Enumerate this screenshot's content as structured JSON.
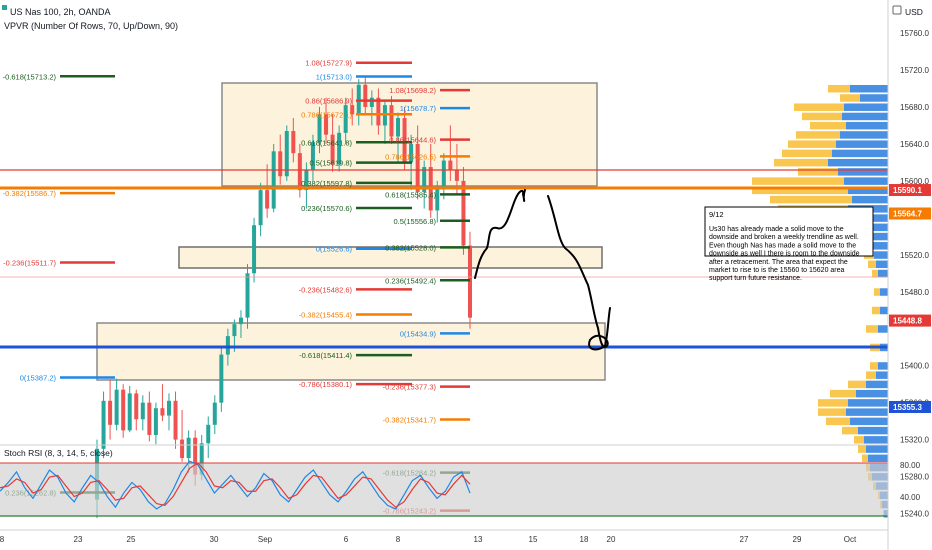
{
  "header": {
    "symbol_line": "US Nas 100, 2h, OANDA",
    "indicator_line": "VPVR (Number Of Rows, 70, Up/Down, 90)"
  },
  "price_axis": {
    "currency": "USD",
    "ticks": [
      "15760.0",
      "15720.0",
      "15680.0",
      "15640.0",
      "15600.0",
      "15520.0",
      "15480.0",
      "15400.0",
      "15360.0",
      "15320.0",
      "15280.0",
      "15240.0"
    ]
  },
  "time_axis": {
    "ticks": [
      "8",
      "23",
      "25",
      "30",
      "Sep",
      "6",
      "8",
      "13",
      "15",
      "18",
      "20",
      "27",
      "29",
      "Oct"
    ]
  },
  "price_tags": [
    {
      "label": "15590.1",
      "price": 15590.1,
      "color": "#e53935"
    },
    {
      "label": "15564.7",
      "price": 15564.7,
      "color": "#f57c00"
    },
    {
      "label": "15448.8",
      "price": 15448.8,
      "color": "#e53935"
    },
    {
      "label": "15355.3",
      "price": 15355.3,
      "color": "#1e53d6"
    }
  ],
  "fib_left": [
    {
      "label": "-0.618(15713.2)",
      "price": 15713.2,
      "color": "#1b5e20"
    },
    {
      "label": "-0.382(15586.7)",
      "price": 15586.7,
      "color": "#f57c00"
    },
    {
      "label": "-0.236(15511.7)",
      "price": 15511.7,
      "color": "#e53935"
    },
    {
      "label": "0(15387.2)",
      "price": 15387.2,
      "color": "#1e88e5"
    },
    {
      "label": "0.236(15262.8)",
      "price": 15262.8,
      "color": "#1b5e20"
    }
  ],
  "fib_mid": [
    {
      "label": "1.08(15727.9)",
      "price": 15727.9,
      "color": "#e53935"
    },
    {
      "label": "1(15713.0)",
      "price": 15713.0,
      "color": "#1e88e5"
    },
    {
      "label": "0.86(15686.9)",
      "price": 15686.9,
      "color": "#e53935"
    },
    {
      "label": "0.786(15672.1)",
      "price": 15672.1,
      "color": "#f57c00"
    },
    {
      "label": "0.618(15641.8)",
      "price": 15641.8,
      "color": "#1b5e20"
    },
    {
      "label": "0.5(15619.8)",
      "price": 15619.8,
      "color": "#1b5e20"
    },
    {
      "label": "0.382(15597.8)",
      "price": 15597.8,
      "color": "#1b5e20"
    },
    {
      "label": "0.236(15570.6)",
      "price": 15570.6,
      "color": "#1b5e20"
    },
    {
      "label": "0(15526.6)",
      "price": 15526.6,
      "color": "#1e88e5"
    },
    {
      "label": "-0.236(15482.6)",
      "price": 15482.6,
      "color": "#e53935"
    },
    {
      "label": "-0.382(15455.4)",
      "price": 15455.4,
      "color": "#f57c00"
    },
    {
      "label": "-0.618(15411.4)",
      "price": 15411.4,
      "color": "#1b5e20"
    },
    {
      "label": "-0.786(15380.1)",
      "price": 15380.1,
      "color": "#e53935"
    }
  ],
  "fib_right": [
    {
      "label": "1.08(15698.2)",
      "price": 15698.2,
      "color": "#e53935"
    },
    {
      "label": "1(15678.7)",
      "price": 15678.7,
      "color": "#1e88e5"
    },
    {
      "label": "0.86(15644.6)",
      "price": 15644.6,
      "color": "#e53935"
    },
    {
      "label": "0.786(15626.5)",
      "price": 15626.5,
      "color": "#f57c00"
    },
    {
      "label": "0.618(15585.4)",
      "price": 15585.4,
      "color": "#1b5e20"
    },
    {
      "label": "0.5(15556.8)",
      "price": 15556.8,
      "color": "#1b5e20"
    },
    {
      "label": "0.382(15528.0)",
      "price": 15528.0,
      "color": "#1b5e20"
    },
    {
      "label": "0.236(15492.4)",
      "price": 15492.4,
      "color": "#1b5e20"
    },
    {
      "label": "0(15434.9)",
      "price": 15434.9,
      "color": "#1e88e5"
    },
    {
      "label": "-0.236(15377.3)",
      "price": 15377.3,
      "color": "#e53935"
    },
    {
      "label": "-0.382(15341.7)",
      "price": 15341.7,
      "color": "#f57c00"
    },
    {
      "label": "-0.618(15284.2)",
      "price": 15284.2,
      "color": "#1b5e20"
    },
    {
      "label": "-0.786(15243.2)",
      "price": 15243.2,
      "color": "#e53935"
    }
  ],
  "note": {
    "date": "9/12",
    "text": "Us30 has already made a solid move to the downside and broken a weekly trendline as well. Even though Nas has made a solid move to the downside as well I there is room to the downside after a retracement. The area that expect the market to rise to is the 15560 to 15620 area support turn future resistance."
  },
  "stoch": {
    "title": "Stoch RSI (8, 3, 14, 5, close)",
    "levels": [
      "80.00",
      "40.00"
    ],
    "colors": {
      "k": "#1e88e5",
      "d": "#e53935",
      "band": "#cfcfcf"
    }
  },
  "colors": {
    "up": "#26a69a",
    "down": "#ef5350",
    "vol_up": "#4a90e2",
    "vol_down": "#f9c74f",
    "trend": "#1e53d6"
  },
  "chart_data": {
    "type": "candlestick",
    "price_range": [
      15225,
      15800
    ],
    "candles": [
      [
        15255,
        15320,
        15235,
        15310
      ],
      [
        15310,
        15372,
        15300,
        15362
      ],
      [
        15362,
        15385,
        15320,
        15336
      ],
      [
        15336,
        15386,
        15330,
        15374
      ],
      [
        15374,
        15380,
        15322,
        15330
      ],
      [
        15330,
        15378,
        15328,
        15370
      ],
      [
        15370,
        15374,
        15330,
        15342
      ],
      [
        15342,
        15368,
        15330,
        15360
      ],
      [
        15360,
        15372,
        15318,
        15325
      ],
      [
        15325,
        15360,
        15315,
        15354
      ],
      [
        15354,
        15380,
        15340,
        15346
      ],
      [
        15346,
        15370,
        15330,
        15362
      ],
      [
        15362,
        15372,
        15310,
        15320
      ],
      [
        15320,
        15352,
        15296,
        15300
      ],
      [
        15300,
        15330,
        15284,
        15322
      ],
      [
        15322,
        15330,
        15270,
        15282
      ],
      [
        15282,
        15325,
        15276,
        15316
      ],
      [
        15316,
        15345,
        15300,
        15336
      ],
      [
        15336,
        15368,
        15326,
        15360
      ],
      [
        15360,
        15420,
        15350,
        15412
      ],
      [
        15412,
        15440,
        15400,
        15432
      ],
      [
        15432,
        15450,
        15415,
        15445
      ],
      [
        15445,
        15460,
        15430,
        15452
      ],
      [
        15452,
        15510,
        15440,
        15500
      ],
      [
        15500,
        15560,
        15490,
        15552
      ],
      [
        15552,
        15598,
        15540,
        15590
      ],
      [
        15590,
        15618,
        15560,
        15570
      ],
      [
        15570,
        15640,
        15566,
        15632
      ],
      [
        15632,
        15650,
        15596,
        15605
      ],
      [
        15605,
        15660,
        15600,
        15654
      ],
      [
        15654,
        15668,
        15620,
        15630
      ],
      [
        15630,
        15640,
        15582,
        15590
      ],
      [
        15590,
        15620,
        15570,
        15612
      ],
      [
        15612,
        15650,
        15600,
        15642
      ],
      [
        15642,
        15680,
        15630,
        15672
      ],
      [
        15672,
        15690,
        15640,
        15650
      ],
      [
        15650,
        15672,
        15610,
        15618
      ],
      [
        15618,
        15660,
        15610,
        15652
      ],
      [
        15652,
        15690,
        15640,
        15682
      ],
      [
        15682,
        15700,
        15660,
        15672
      ],
      [
        15672,
        15710,
        15660,
        15704
      ],
      [
        15704,
        15712,
        15672,
        15680
      ],
      [
        15680,
        15698,
        15660,
        15690
      ],
      [
        15690,
        15700,
        15650,
        15660
      ],
      [
        15660,
        15688,
        15640,
        15682
      ],
      [
        15682,
        15692,
        15640,
        15648
      ],
      [
        15648,
        15674,
        15620,
        15668
      ],
      [
        15668,
        15680,
        15612,
        15620
      ],
      [
        15620,
        15650,
        15590,
        15640
      ],
      [
        15640,
        15660,
        15580,
        15588
      ],
      [
        15588,
        15622,
        15570,
        15615
      ],
      [
        15615,
        15640,
        15560,
        15568
      ],
      [
        15568,
        15600,
        15555,
        15592
      ],
      [
        15592,
        15630,
        15580,
        15622
      ],
      [
        15622,
        15660,
        15600,
        15612
      ],
      [
        15612,
        15640,
        15585,
        15600
      ],
      [
        15600,
        15615,
        15520,
        15530
      ],
      [
        15530,
        15545,
        15440,
        15452
      ]
    ],
    "stoch_k": [
      48,
      58,
      70,
      52,
      40,
      56,
      72,
      64,
      46,
      36,
      52,
      66,
      58,
      42,
      30,
      46,
      58,
      50,
      36,
      28,
      34,
      50,
      70,
      82,
      78,
      62,
      46,
      56,
      66,
      54,
      42,
      52,
      68,
      60,
      44,
      36,
      50,
      64,
      72,
      58,
      44,
      36,
      48,
      62,
      70,
      56,
      42,
      32,
      28,
      44,
      60,
      66,
      52,
      40,
      48,
      64,
      70,
      46
    ],
    "stoch_d": [
      52,
      54,
      62,
      58,
      46,
      50,
      64,
      66,
      54,
      42,
      46,
      58,
      60,
      50,
      38,
      40,
      52,
      54,
      44,
      34,
      32,
      42,
      58,
      74,
      80,
      70,
      54,
      52,
      60,
      58,
      48,
      48,
      60,
      62,
      52,
      40,
      44,
      56,
      66,
      64,
      52,
      40,
      44,
      54,
      64,
      62,
      50,
      38,
      30,
      36,
      50,
      62,
      58,
      46,
      44,
      56,
      66,
      56
    ],
    "volume_profile": [
      {
        "price": 15700,
        "up": 38,
        "down": 22
      },
      {
        "price": 15690,
        "up": 28,
        "down": 20
      },
      {
        "price": 15680,
        "up": 44,
        "down": 50
      },
      {
        "price": 15670,
        "up": 46,
        "down": 40
      },
      {
        "price": 15660,
        "up": 42,
        "down": 36
      },
      {
        "price": 15650,
        "up": 48,
        "down": 44
      },
      {
        "price": 15640,
        "up": 52,
        "down": 48
      },
      {
        "price": 15630,
        "up": 56,
        "down": 50
      },
      {
        "price": 15620,
        "up": 60,
        "down": 54
      },
      {
        "price": 15610,
        "up": 50,
        "down": 40
      },
      {
        "price": 15600,
        "up": 44,
        "down": 92
      },
      {
        "price": 15590,
        "up": 40,
        "down": 96
      },
      {
        "price": 15580,
        "up": 36,
        "down": 82
      },
      {
        "price": 15570,
        "up": 40,
        "down": 70
      },
      {
        "price": 15560,
        "up": 32,
        "down": 56
      },
      {
        "price": 15550,
        "up": 26,
        "down": 36
      },
      {
        "price": 15540,
        "up": 20,
        "down": 18
      },
      {
        "price": 15530,
        "up": 16,
        "down": 12
      },
      {
        "price": 15520,
        "up": 14,
        "down": 10
      },
      {
        "price": 15510,
        "up": 12,
        "down": 8
      },
      {
        "price": 15500,
        "up": 10,
        "down": 6
      },
      {
        "price": 15480,
        "up": 8,
        "down": 6
      },
      {
        "price": 15460,
        "up": 8,
        "down": 8
      },
      {
        "price": 15440,
        "up": 10,
        "down": 12
      },
      {
        "price": 15420,
        "up": 8,
        "down": 10
      },
      {
        "price": 15400,
        "up": 10,
        "down": 8
      },
      {
        "price": 15390,
        "up": 12,
        "down": 10
      },
      {
        "price": 15380,
        "up": 22,
        "down": 18
      },
      {
        "price": 15370,
        "up": 32,
        "down": 26
      },
      {
        "price": 15360,
        "up": 40,
        "down": 30
      },
      {
        "price": 15350,
        "up": 42,
        "down": 28
      },
      {
        "price": 15340,
        "up": 38,
        "down": 24
      },
      {
        "price": 15330,
        "up": 30,
        "down": 16
      },
      {
        "price": 15320,
        "up": 24,
        "down": 10
      },
      {
        "price": 15310,
        "up": 22,
        "down": 8
      },
      {
        "price": 15300,
        "up": 20,
        "down": 6
      },
      {
        "price": 15290,
        "up": 18,
        "down": 4
      },
      {
        "price": 15280,
        "up": 16,
        "down": 4
      },
      {
        "price": 15270,
        "up": 12,
        "down": 3
      },
      {
        "price": 15260,
        "up": 8,
        "down": 2
      },
      {
        "price": 15250,
        "up": 6,
        "down": 2
      },
      {
        "price": 15240,
        "up": 4,
        "down": 1
      }
    ]
  }
}
